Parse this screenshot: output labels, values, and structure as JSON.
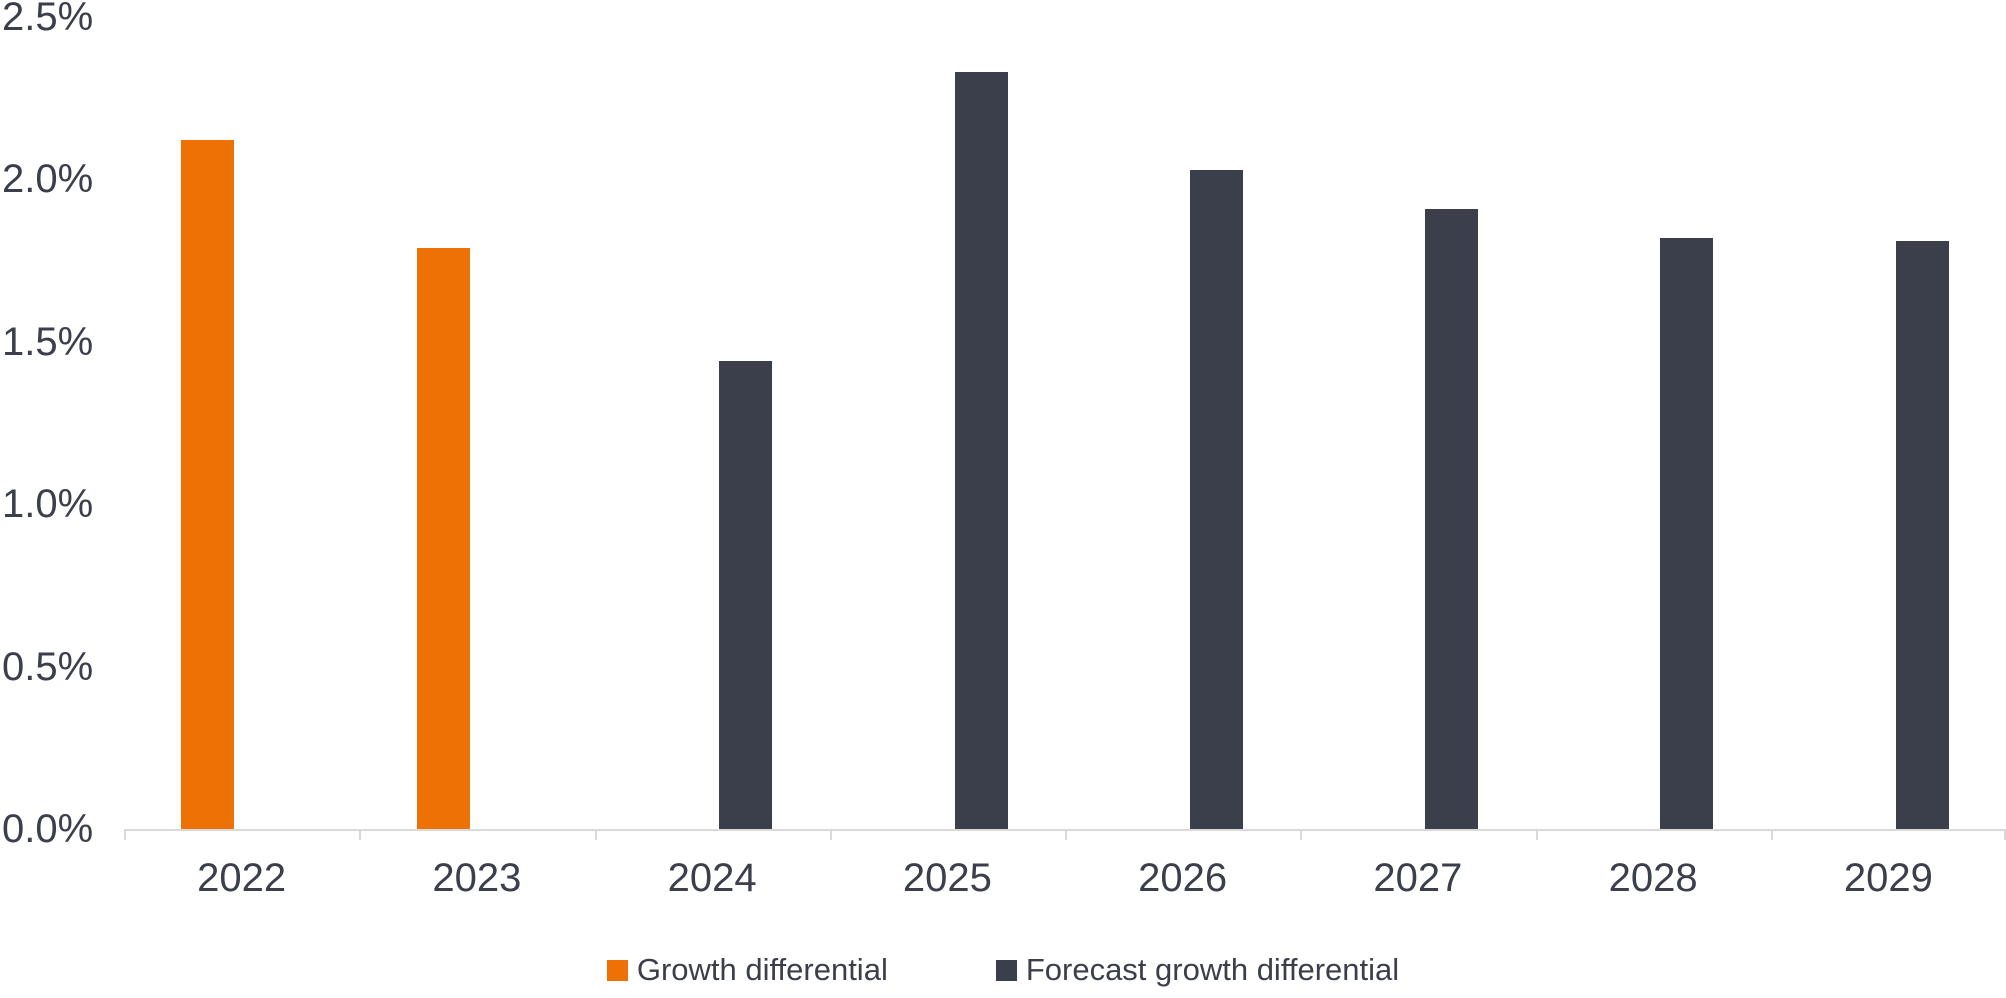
{
  "chart_data": {
    "type": "bar",
    "title": "",
    "xlabel": "",
    "ylabel": "",
    "unit": "%",
    "categories": [
      "2022",
      "2023",
      "2024",
      "2025",
      "2026",
      "2027",
      "2028",
      "2029"
    ],
    "series": [
      {
        "name": "Growth differential",
        "color": "#EE7105",
        "values": [
          2.12,
          1.79,
          null,
          null,
          null,
          null,
          null,
          null
        ]
      },
      {
        "name": "Forecast growth differential",
        "color": "#3A3F4B",
        "values": [
          null,
          null,
          1.44,
          2.33,
          2.03,
          1.91,
          1.82,
          1.81
        ]
      }
    ],
    "ylim": [
      0,
      2.5
    ],
    "y_ticks": [
      "0.0%",
      "0.5%",
      "1.0%",
      "1.5%",
      "2.0%",
      "2.5%"
    ],
    "grid": false,
    "legend_position": "bottom",
    "axis_color": "#D9D9D9",
    "label_color": "#3A3F4B"
  }
}
